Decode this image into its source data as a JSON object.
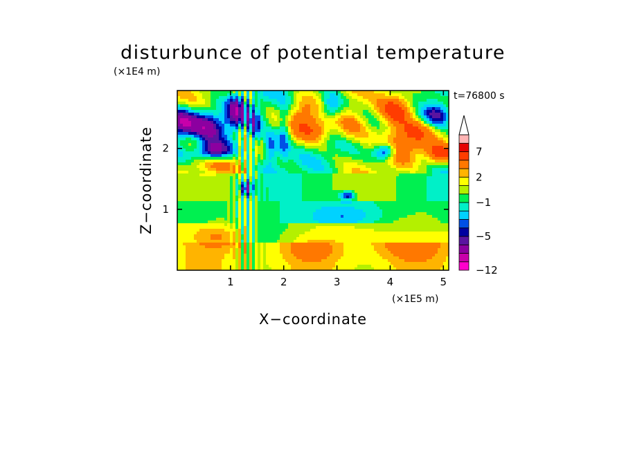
{
  "chart_data": {
    "type": "heatmap",
    "title": "disturbunce of potential temperature",
    "xlabel": "X−coordinate",
    "ylabel": "Z−coordinate",
    "x_scale_label": "(×1E5 m)",
    "y_scale_label": "(×1E4 m)",
    "time_label": "t=76800 s",
    "xlim": [
      0,
      5.1
    ],
    "ylim": [
      0,
      2.95
    ],
    "x_ticks": [
      1,
      2,
      3,
      4,
      5
    ],
    "x_tick_labels": [
      "1",
      "2",
      "3",
      "4",
      "5"
    ],
    "y_ticks": [
      1,
      2
    ],
    "y_tick_labels": [
      "1",
      "2"
    ],
    "colorbar": {
      "extend": "max",
      "levels_bottom_to_top": [
        -12,
        -10,
        -8,
        -6,
        -5,
        -4,
        -3,
        -2,
        -1,
        0,
        1,
        2,
        3,
        5,
        7,
        9,
        11
      ],
      "colors_bottom_to_top": [
        "#ff00cc",
        "#c800aa",
        "#8c00a0",
        "#5a14a0",
        "#0000a0",
        "#0050e6",
        "#00d2ff",
        "#00f0c8",
        "#00f050",
        "#b4f000",
        "#ffff00",
        "#ffb400",
        "#ff7800",
        "#ff3c00",
        "#e60000",
        "#ffb4b4",
        "#ffffff"
      ],
      "tick_labels": [
        "7",
        "2",
        "−1",
        "−5",
        "−12"
      ],
      "tick_values": [
        7,
        2,
        -1,
        -5,
        -12
      ]
    },
    "field_summary": {
      "description_rows": [
        {
          "z_range": [
            0,
            0.4
          ],
          "dominant": "yellow/orange (0 to 3)"
        },
        {
          "z_range": [
            0.4,
            1.1
          ],
          "dominant": "green/cyan (-2 to 0)"
        },
        {
          "z_range": [
            1.1,
            1.6
          ],
          "dominant": "green/cyan (-1 to 1)"
        },
        {
          "z_range": [
            1.6,
            2.95
          ],
          "dominant": "alternating orange/red and blue bands (-5 to 7)"
        }
      ]
    }
  }
}
